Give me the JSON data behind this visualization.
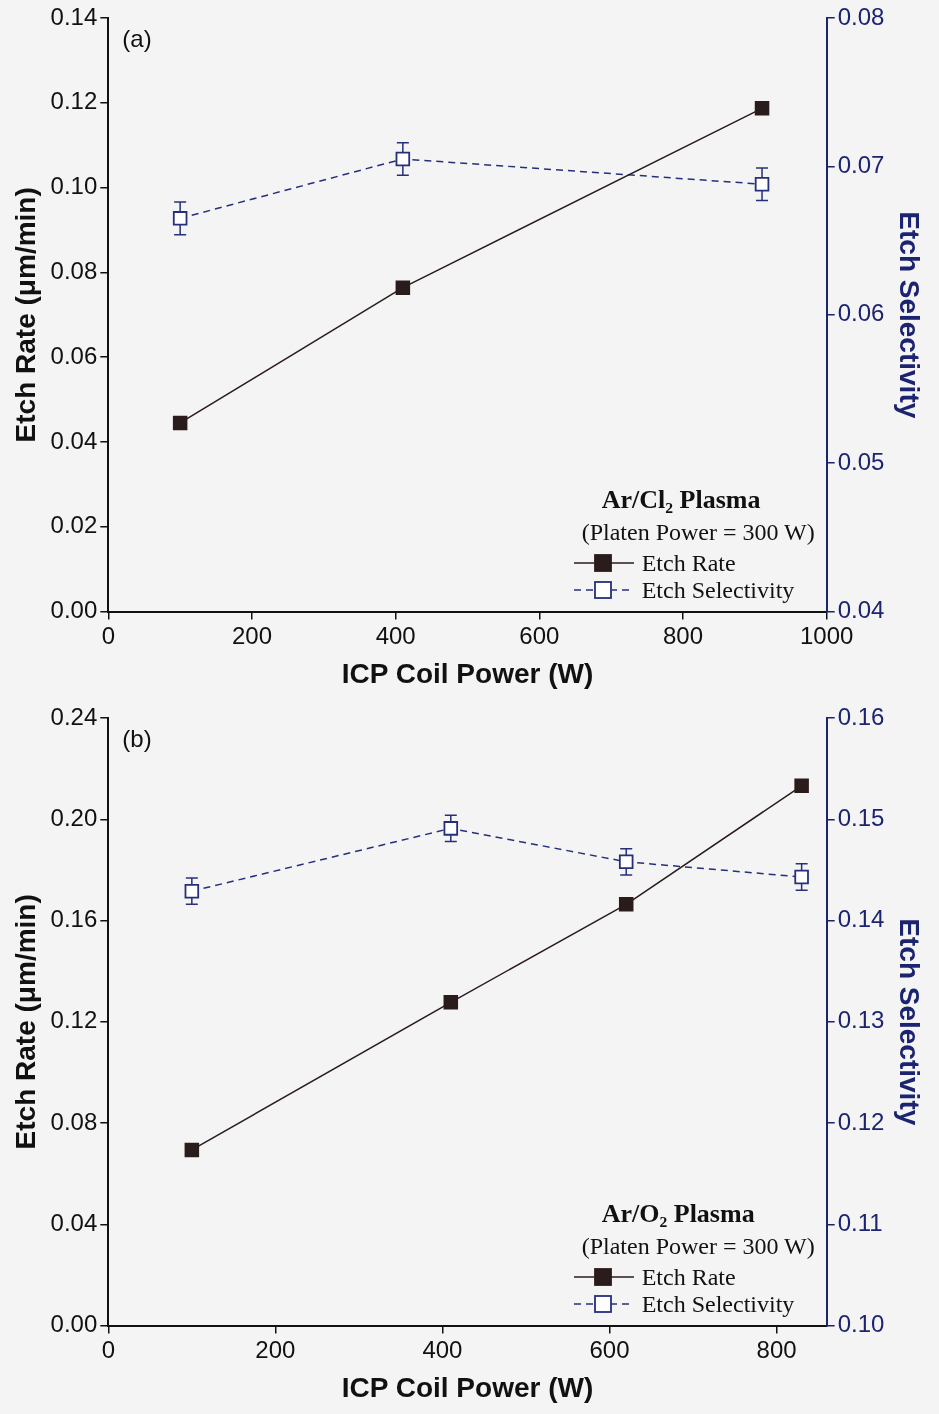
{
  "chart_data": [
    {
      "type": "line",
      "subtitle": "(a)",
      "xlabel": "ICP Coil Power (W)",
      "ylabel": "Etch Rate (μm/min)",
      "y2label": "Etch Selectivity",
      "legend_title": "Ar/Cl₂ Plasma",
      "annotations": [
        "(Platen Power = 300 W)"
      ],
      "legend": "bottom right",
      "grid": false,
      "marker": "square",
      "xlim": [
        0,
        1000
      ],
      "xticks": [
        0,
        200,
        400,
        600,
        800,
        1000
      ],
      "ylim": [
        0,
        0.14
      ],
      "yticks": [
        {
          "value": 0,
          "label": "0.00"
        },
        0.02,
        0.04,
        0.06,
        0.08,
        {
          "value": 0.1,
          "label": "0.10"
        },
        0.12,
        0.14
      ],
      "y2lim": [
        0.04,
        0.08
      ],
      "y2ticks": [
        0.04,
        0.05,
        0.06,
        0.07,
        0.08
      ],
      "series": [
        {
          "name": "Etch Rate",
          "color": "#2b1c1c",
          "x": [
            100,
            410,
            910
          ],
          "values": [
            0.0445,
            0.0764,
            0.1187
          ],
          "line_style": "solid"
        },
        {
          "name": "Etch Selectivity",
          "color": "#26307a",
          "x": [
            100,
            410,
            910
          ],
          "values": [
            0.0665,
            0.0705,
            0.0688
          ],
          "errors": [
            0.0011,
            0.0011,
            0.0011
          ],
          "axis": "y2",
          "line_style": "dashed"
        }
      ]
    },
    {
      "type": "line",
      "subtitle": "(b)",
      "xlabel": "ICP Coil Power (W)",
      "ylabel": "Etch Rate (μm/min)",
      "y2label": "Etch Selectivity",
      "legend_title": "Ar/O₂ Plasma",
      "annotations": [
        "(Platen Power = 300 W)"
      ],
      "legend": "bottom right",
      "grid": false,
      "marker": "square",
      "xlim": [
        0,
        860
      ],
      "xticks": [
        0,
        200,
        400,
        600,
        800
      ],
      "ylim": [
        0,
        0.24
      ],
      "yticks": [
        {
          "value": 0,
          "label": "0.00"
        },
        0.04,
        0.08,
        0.12,
        0.16,
        {
          "value": 0.2,
          "label": "0.20"
        },
        0.24
      ],
      "y2lim": [
        0.1,
        0.16
      ],
      "y2ticks": [
        {
          "value": 0.1,
          "label": "0.10"
        },
        0.11,
        0.12,
        0.13,
        0.14,
        0.15,
        0.16
      ],
      "series": [
        {
          "name": "Etch Rate",
          "color": "#2b1c1c",
          "x": [
            100,
            410,
            620,
            830
          ],
          "values": [
            0.0694,
            0.1277,
            0.1664,
            0.2132
          ],
          "line_style": "solid"
        },
        {
          "name": "Etch Selectivity",
          "color": "#26307a",
          "x": [
            100,
            410,
            620,
            830
          ],
          "values": [
            0.1429,
            0.1491,
            0.1458,
            0.1443
          ],
          "errors": [
            0.0013,
            0.0013,
            0.0013,
            0.0013
          ],
          "axis": "y2",
          "line_style": "dashed"
        }
      ]
    }
  ]
}
